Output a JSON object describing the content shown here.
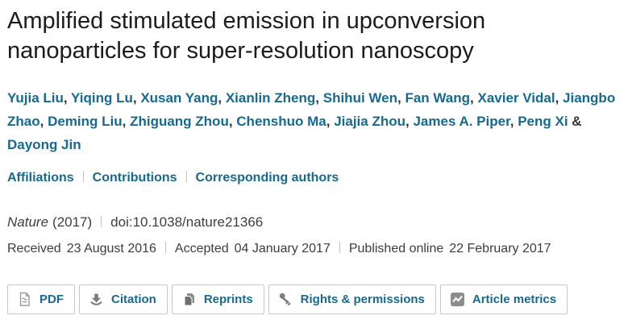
{
  "title": "Amplified stimulated emission in upconversion nanoparticles for super-resolution nanoscopy",
  "authors": {
    "names": [
      "Yujia Liu",
      "Yiqing Lu",
      "Xusan Yang",
      "Xianlin Zheng",
      "Shihui Wen",
      "Fan Wang",
      "Xavier Vidal",
      "Jiangbo Zhao",
      "Deming Liu",
      "Zhiguang Zhou",
      "Chenshuo Ma",
      "Jiajia Zhou",
      "James A. Piper",
      "Peng Xi",
      "Dayong Jin"
    ],
    "separator": ", ",
    "last_separator": " & "
  },
  "author_links": [
    {
      "label": "Affiliations"
    },
    {
      "label": "Contributions"
    },
    {
      "label": "Corresponding authors"
    }
  ],
  "citation": {
    "journal": "Nature",
    "year": "(2017)",
    "doi": "doi:10.1038/nature21366"
  },
  "dates": [
    {
      "label": "Received",
      "date": "23 August 2016"
    },
    {
      "label": "Accepted",
      "date": "04 January 2017"
    },
    {
      "label": "Published online",
      "date": "22 February 2017"
    }
  ],
  "toolbar": {
    "buttons": [
      {
        "label": "PDF",
        "icon": "pdf-document-icon"
      },
      {
        "label": "Citation",
        "icon": "download-icon"
      },
      {
        "label": "Reprints",
        "icon": "copy-pages-icon"
      },
      {
        "label": "Rights & permissions",
        "icon": "key-icon"
      },
      {
        "label": "Article metrics",
        "icon": "chart-metrics-icon"
      }
    ]
  },
  "colors": {
    "link_teal": "#17698e",
    "title_dark": "#1c1c1c",
    "meta_gray": "#3d3d3d",
    "separator_gray": "#bfbfbf",
    "icon_gray": "#7d7d7d",
    "button_border": "#c9c9c9"
  }
}
